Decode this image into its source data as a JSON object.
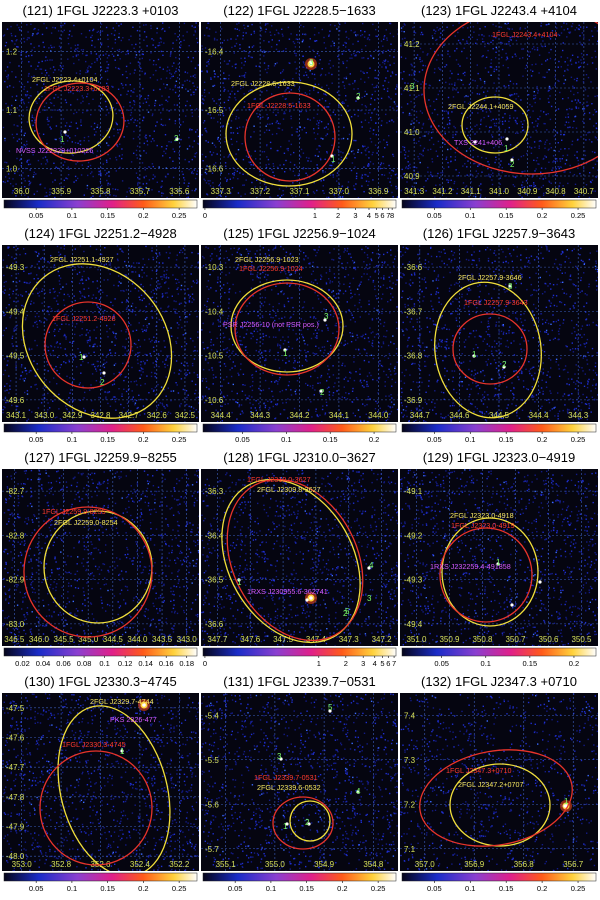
{
  "figure": {
    "panels": [
      {
        "title": "(121) 1FGL J2223.3 +0103",
        "yticks": [
          "1.2",
          "1.1",
          "1.0"
        ],
        "xticks": [
          "36.0",
          "335.9",
          "335.8",
          "335.7",
          "335.6"
        ],
        "cbar_ticks": [
          "0.05",
          "0.1",
          "0.15",
          "0.2",
          "0.25"
        ],
        "labels": [
          {
            "text": "2FGL J2223.4+0104",
            "color": "#f5e663"
          },
          {
            "text": "1FGL J2223.3+0103",
            "color": "#ff3b2f"
          },
          {
            "text": "NVSS J222329+010226",
            "color": "#d75cff"
          },
          {
            "text": "1",
            "color": "#7dff6a"
          },
          {
            "text": "2",
            "color": "#7dff6a"
          }
        ]
      },
      {
        "title": "(122) 1FGL J2228.5−1633",
        "yticks": [
          "-16.4",
          "-16.5",
          "-16.6"
        ],
        "xticks": [
          "337.3",
          "337.2",
          "337.1",
          "337.0",
          "336.9"
        ],
        "cbar_ticks": [
          "0",
          "1",
          "2",
          "3",
          "4",
          "5",
          "6",
          "7",
          "8"
        ],
        "labels": [
          {
            "text": "2FGL J2228.6-1633",
            "color": "#f5e663"
          },
          {
            "text": "1FGL J2228.5-1633",
            "color": "#ff3b2f"
          },
          {
            "text": "1",
            "color": "#7dff6a"
          },
          {
            "text": "2",
            "color": "#7dff6a"
          },
          {
            "text": "3",
            "color": "#7dff6a"
          }
        ]
      },
      {
        "title": "(123) 1FGL J2243.4 +4104",
        "yticks": [
          "41.2",
          "41.1",
          "41.0",
          "40.9"
        ],
        "xticks": [
          "341.3",
          "341.2",
          "341.1",
          "341.0",
          "340.9",
          "340.8",
          "340.7"
        ],
        "cbar_ticks": [
          "0.05",
          "0.1",
          "0.15",
          "0.2",
          "0.25"
        ],
        "labels": [
          {
            "text": "1FGL J2243.4+4104",
            "color": "#ff3b2f"
          },
          {
            "text": "2FGL J2244.1+4059",
            "color": "#f5e663"
          },
          {
            "text": "TXS 2241+406",
            "color": "#d75cff"
          },
          {
            "text": "1",
            "color": "#7dff6a"
          },
          {
            "text": "2",
            "color": "#7dff6a"
          },
          {
            "text": "3",
            "color": "#7dff6a"
          }
        ]
      },
      {
        "title": "(124) 1FGL J2251.2−4928",
        "yticks": [
          "-49.3",
          "-49.4",
          "-49.5",
          "-49.6"
        ],
        "xticks": [
          "343.1",
          "343.0",
          "342.9",
          "342.8",
          "342.7",
          "342.6",
          "342.5"
        ],
        "cbar_ticks": [
          "0.05",
          "0.1",
          "0.15",
          "0.2",
          "0.25"
        ],
        "labels": [
          {
            "text": "2FGL J2251.1-4927",
            "color": "#f5e663"
          },
          {
            "text": "1FGL J2251.2-4928",
            "color": "#ff3b2f"
          },
          {
            "text": "1",
            "color": "#7dff6a"
          },
          {
            "text": "2",
            "color": "#7dff6a"
          }
        ]
      },
      {
        "title": "(125) 1FGL J2256.9−1024",
        "yticks": [
          "-10.3",
          "-10.4",
          "-10.5",
          "-10.6"
        ],
        "xticks": [
          "344.4",
          "344.3",
          "344.2",
          "344.1",
          "344.0"
        ],
        "cbar_ticks": [
          "0.05",
          "0.1",
          "0.15",
          "0.2"
        ],
        "labels": [
          {
            "text": "2FGL J2256.9-1023",
            "color": "#f5e663"
          },
          {
            "text": "1FGL J2256.9-1024",
            "color": "#ff3b2f"
          },
          {
            "text": "PSR J2256-10 (not PSR pos.)",
            "color": "#d75cff"
          },
          {
            "text": "1",
            "color": "#7dff6a"
          },
          {
            "text": "2",
            "color": "#7dff6a"
          },
          {
            "text": "3",
            "color": "#7dff6a"
          }
        ]
      },
      {
        "title": "(126) 1FGL J2257.9−3643",
        "yticks": [
          "-36.6",
          "-36.7",
          "-36.8",
          "-36.9"
        ],
        "xticks": [
          "344.7",
          "344.6",
          "344.5",
          "344.4",
          "344.3"
        ],
        "cbar_ticks": [
          "0.05",
          "0.1",
          "0.15",
          "0.2",
          "0.25"
        ],
        "labels": [
          {
            "text": "2FGL J2257.9-3646",
            "color": "#f5e663"
          },
          {
            "text": "1FGL J2257.9-3643",
            "color": "#ff3b2f"
          },
          {
            "text": "1",
            "color": "#7dff6a"
          },
          {
            "text": "2",
            "color": "#7dff6a"
          },
          {
            "text": "3",
            "color": "#7dff6a"
          }
        ]
      },
      {
        "title": "(127) 1FGL J2259.9−8255",
        "yticks": [
          "-82.7",
          "-82.8",
          "-82.9",
          "-83.0"
        ],
        "xticks": [
          "346.5",
          "346.0",
          "345.5",
          "345.0",
          "344.5",
          "344.0",
          "343.5",
          "343.0"
        ],
        "cbar_ticks": [
          "0.02",
          "0.04",
          "0.06",
          "0.08",
          "0.1",
          "0.12",
          "0.14",
          "0.16",
          "0.18"
        ],
        "labels": [
          {
            "text": "1FGL J2259.9-8255",
            "color": "#ff3b2f"
          },
          {
            "text": "2FGL J2259.0-8254",
            "color": "#f5e663"
          }
        ]
      },
      {
        "title": "(128) 1FGL J2310.0−3627",
        "yticks": [
          "-36.3",
          "-36.4",
          "-36.5",
          "-36.6"
        ],
        "xticks": [
          "347.7",
          "347.6",
          "347.5",
          "347.4",
          "347.3",
          "347.2"
        ],
        "cbar_ticks": [
          "0",
          "1",
          "2",
          "3",
          "4",
          "5",
          "6",
          "7"
        ],
        "labels": [
          {
            "text": "1FGL J2310.0-3627",
            "color": "#ff3b2f"
          },
          {
            "text": "2FGL J2309.8-3627",
            "color": "#f5e663"
          },
          {
            "text": "1RXS J230955.6-362741",
            "color": "#d75cff"
          },
          {
            "text": "1",
            "color": "#7dff6a"
          },
          {
            "text": "2",
            "color": "#7dff6a"
          },
          {
            "text": "3",
            "color": "#7dff6a"
          },
          {
            "text": "4",
            "color": "#7dff6a"
          },
          {
            "text": "5",
            "color": "#7dff6a"
          }
        ]
      },
      {
        "title": "(129) 1FGL J2323.0−4919",
        "yticks": [
          "-49.1",
          "-49.2",
          "-49.3",
          "-49.4"
        ],
        "xticks": [
          "351.0",
          "350.9",
          "350.8",
          "350.7",
          "350.6",
          "350.5"
        ],
        "cbar_ticks": [
          "0.05",
          "0.1",
          "0.15",
          "0.2"
        ],
        "labels": [
          {
            "text": "2FGL J2323.0-4918",
            "color": "#f5e663"
          },
          {
            "text": "1FGL J2323.0-4919",
            "color": "#ff3b2f"
          },
          {
            "text": "1RXS J232259.4-491858",
            "color": "#d75cff"
          },
          {
            "text": "1",
            "color": "#7dff6a"
          }
        ]
      },
      {
        "title": "(130) 1FGL J2330.3−4745",
        "yticks": [
          "-47.5",
          "-47.6",
          "-47.7",
          "-47.8",
          "-47.9",
          "-48.0"
        ],
        "xticks": [
          "353.0",
          "352.8",
          "352.6",
          "352.4",
          "352.2"
        ],
        "cbar_ticks": [
          "0.05",
          "0.1",
          "0.15",
          "0.2",
          "0.25"
        ],
        "labels": [
          {
            "text": "2FGL J2329.7-4744",
            "color": "#f5e663"
          },
          {
            "text": "PKS 2326-477",
            "color": "#d75cff"
          },
          {
            "text": "1FGL J2330.3-4745",
            "color": "#ff3b2f"
          },
          {
            "text": "1",
            "color": "#7dff6a"
          }
        ]
      },
      {
        "title": "(131) 1FGL J2339.7−0531",
        "yticks": [
          "-5.4",
          "-5.5",
          "-5.6",
          "-5.7"
        ],
        "xticks": [
          "355.1",
          "355.0",
          "354.9",
          "354.8"
        ],
        "cbar_ticks": [
          "0.05",
          "0.1",
          "0.15",
          "0.2",
          "0.25"
        ],
        "labels": [
          {
            "text": "1FGL J2339.7-0531",
            "color": "#ff3b2f"
          },
          {
            "text": "2FGL J2339.6-0532",
            "color": "#f5e663"
          },
          {
            "text": "1",
            "color": "#7dff6a"
          },
          {
            "text": "2",
            "color": "#7dff6a"
          },
          {
            "text": "3",
            "color": "#7dff6a"
          },
          {
            "text": "4",
            "color": "#7dff6a"
          },
          {
            "text": "5",
            "color": "#7dff6a"
          }
        ]
      },
      {
        "title": "(132) 1FGL J2347.3 +0710",
        "yticks": [
          "7.4",
          "7.3",
          "7.2",
          "7.1"
        ],
        "xticks": [
          "357.0",
          "356.9",
          "356.8",
          "356.7"
        ],
        "cbar_ticks": [
          "0.05",
          "0.1",
          "0.15",
          "0.2",
          "0.25"
        ],
        "labels": [
          {
            "text": "1FGL J2347.3+0710",
            "color": "#ff3b2f"
          },
          {
            "text": "2FGL J2347.2+0707",
            "color": "#f5e663"
          },
          {
            "text": "1",
            "color": "#7dff6a"
          }
        ]
      }
    ]
  }
}
